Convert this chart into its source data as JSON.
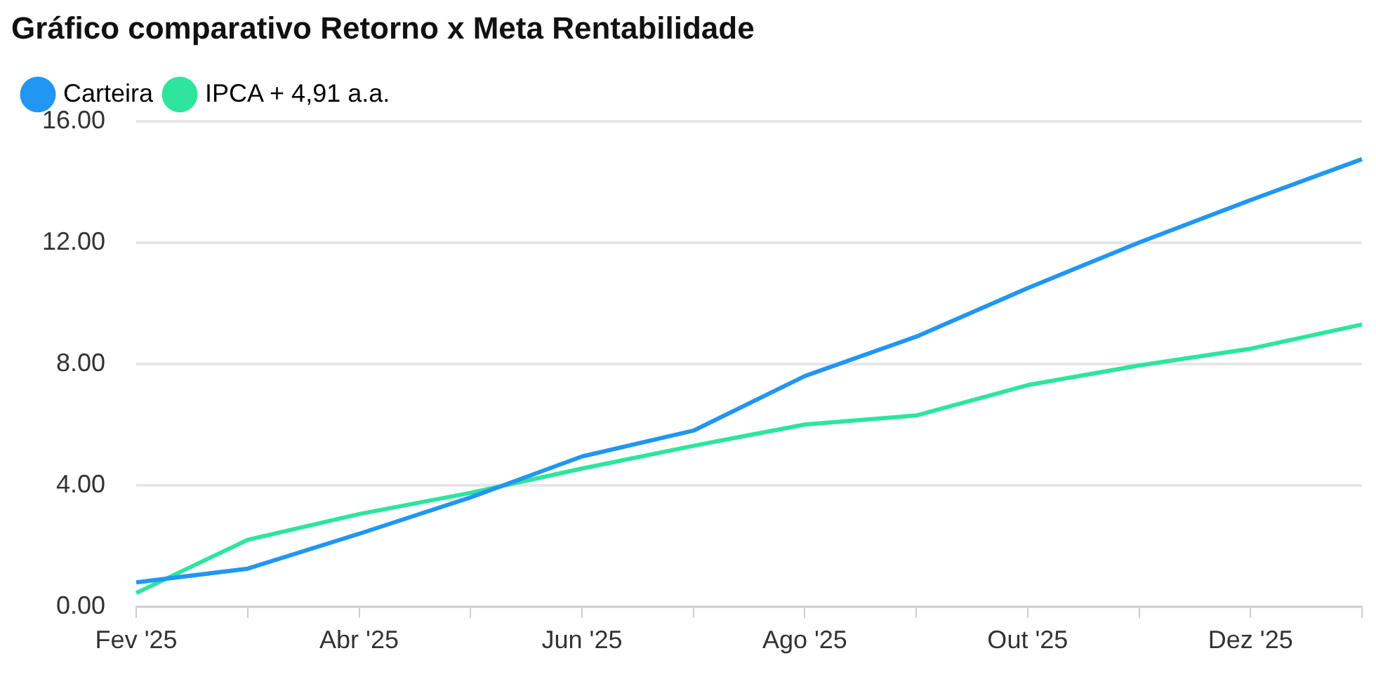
{
  "chart_data": {
    "type": "line",
    "title": "Gráfico comparativo Retorno x Meta Rentabilidade",
    "categories": [
      "Fev '25",
      null,
      "Abr '25",
      null,
      "Jun '25",
      null,
      "Ago '25",
      null,
      "Out '25",
      null,
      "Dez '25",
      null
    ],
    "series": [
      {
        "name": "Carteira",
        "color": "#2196f3",
        "values": [
          0.8,
          1.25,
          2.4,
          3.6,
          4.95,
          5.8,
          7.6,
          8.9,
          10.5,
          12.0,
          13.4,
          14.75
        ]
      },
      {
        "name": "IPCA + 4,91 a.a.",
        "color": "#2ee59d",
        "values": [
          0.45,
          2.2,
          3.05,
          3.75,
          4.55,
          5.3,
          6.0,
          6.3,
          7.3,
          7.95,
          8.5,
          9.3
        ]
      }
    ],
    "ylim": [
      0,
      16
    ],
    "yticks": [
      {
        "value": 0,
        "label": "0.00"
      },
      {
        "value": 4,
        "label": "4.00"
      },
      {
        "value": 8,
        "label": "8.00"
      },
      {
        "value": 12,
        "label": "12.00"
      },
      {
        "value": 16,
        "label": "16.00"
      }
    ],
    "grid": "y",
    "legend": "top left",
    "marker": "none",
    "line_style": "solid"
  }
}
